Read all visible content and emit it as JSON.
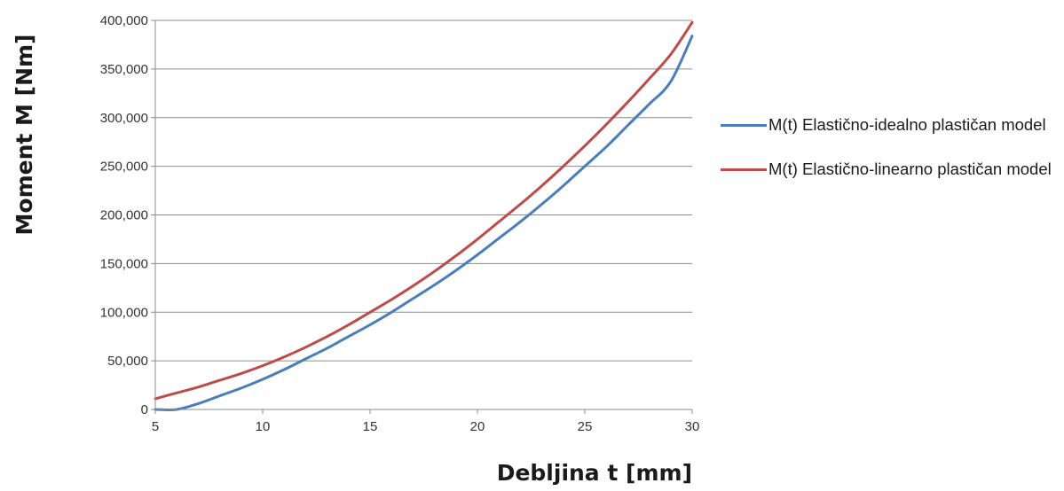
{
  "chart_data": {
    "type": "line",
    "title": "",
    "xlabel": "Debljina t [mm]",
    "ylabel": "Moment M [Nm]",
    "xlim": [
      5,
      30
    ],
    "ylim": [
      0,
      400000
    ],
    "x_ticks": [
      5,
      10,
      15,
      20,
      25,
      30
    ],
    "x_tick_labels": [
      "5",
      "10",
      "15",
      "20",
      "25",
      "30"
    ],
    "y_ticks": [
      0,
      50000,
      100000,
      150000,
      200000,
      250000,
      300000,
      350000,
      400000
    ],
    "y_tick_labels": [
      "0",
      "50,000",
      "100,000",
      "150,000",
      "200,000",
      "250,000",
      "300,000",
      "350,000",
      "400,000"
    ],
    "grid": "horizontal",
    "legend_position": "right",
    "x": [
      5,
      6,
      7,
      8,
      9,
      10,
      11,
      12,
      13,
      14,
      15,
      16,
      17,
      18,
      19,
      20,
      21,
      22,
      23,
      24,
      25,
      26,
      27,
      28,
      29,
      30
    ],
    "series": [
      {
        "name": "M(t) Elastično-idealno plastičan model",
        "color": "#4a7ebb",
        "values": [
          0,
          0,
          6000,
          14000,
          22000,
          31000,
          41000,
          52000,
          63000,
          75000,
          87000,
          100000,
          114000,
          128000,
          143000,
          159000,
          176000,
          193000,
          211000,
          230000,
          250000,
          270000,
          292000,
          314000,
          337000,
          384000
        ]
      },
      {
        "name": "M(t) Elastično-linearno plastičan model",
        "color": "#be4b48",
        "values": [
          11000,
          17000,
          23000,
          30000,
          37000,
          45000,
          54000,
          64000,
          75000,
          87000,
          100000,
          113000,
          127000,
          142000,
          158000,
          175000,
          193000,
          211000,
          230000,
          250000,
          271000,
          293000,
          316000,
          340000,
          365000,
          398000
        ]
      }
    ]
  }
}
